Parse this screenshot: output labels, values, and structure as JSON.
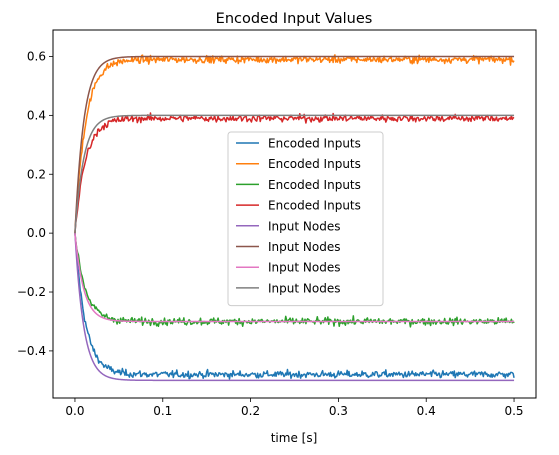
{
  "chart_data": {
    "type": "line",
    "title": "Encoded Input Values",
    "xlabel": "time [s]",
    "ylabel": "",
    "xlim": [
      -0.025,
      0.525
    ],
    "ylim": [
      -0.56,
      0.69
    ],
    "xticks": [
      0.0,
      0.1,
      0.2,
      0.3,
      0.4,
      0.5
    ],
    "xtick_labels": [
      "0.0",
      "0.1",
      "0.2",
      "0.3",
      "0.4",
      "0.5"
    ],
    "yticks": [
      -0.4,
      -0.2,
      0.0,
      0.2,
      0.4,
      0.6
    ],
    "ytick_labels": [
      "−0.4",
      "−0.2",
      "0.0",
      "0.2",
      "0.4",
      "0.6"
    ],
    "grid": false,
    "legend_position": "center",
    "x_start": 0.0,
    "x_end": 0.5,
    "series": [
      {
        "name": "Encoded Inputs",
        "color": "#1f77b4",
        "final_value": -0.48,
        "time_constant": 0.012,
        "noise": 0.012
      },
      {
        "name": "Encoded Inputs",
        "color": "#ff7f0e",
        "final_value": 0.59,
        "time_constant": 0.012,
        "noise": 0.012
      },
      {
        "name": "Encoded Inputs",
        "color": "#2ca02c",
        "final_value": -0.3,
        "time_constant": 0.012,
        "noise": 0.012
      },
      {
        "name": "Encoded Inputs",
        "color": "#d62728",
        "final_value": 0.39,
        "time_constant": 0.012,
        "noise": 0.012
      },
      {
        "name": "Input Nodes",
        "color": "#9467bd",
        "final_value": -0.5,
        "time_constant": 0.01,
        "noise": 0
      },
      {
        "name": "Input Nodes",
        "color": "#8c564b",
        "final_value": 0.6,
        "time_constant": 0.01,
        "noise": 0
      },
      {
        "name": "Input Nodes",
        "color": "#e377c2",
        "final_value": -0.3,
        "time_constant": 0.01,
        "noise": 0
      },
      {
        "name": "Input Nodes",
        "color": "#7f7f7f",
        "final_value": 0.4,
        "time_constant": 0.01,
        "noise": 0
      }
    ]
  }
}
